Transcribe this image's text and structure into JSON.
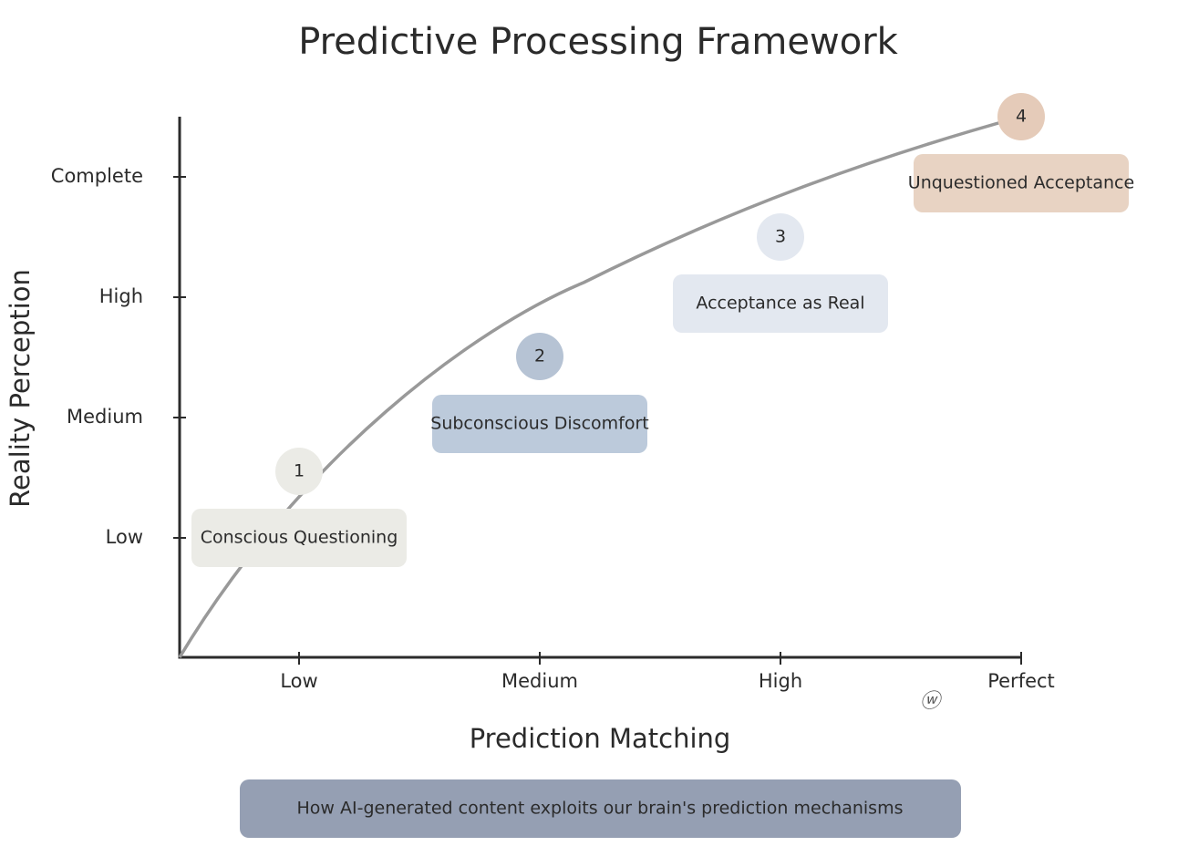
{
  "title": "Predictive Processing Framework",
  "x_axis": {
    "title": "Prediction Matching",
    "labels": [
      "Low",
      "Medium",
      "High",
      "Perfect"
    ]
  },
  "y_axis": {
    "title": "Reality Perception",
    "labels": [
      "Low",
      "Medium",
      "High",
      "Complete"
    ]
  },
  "stages": [
    {
      "number": "1",
      "label": "Conscious Questioning"
    },
    {
      "number": "2",
      "label": "Subconscious Discomfort"
    },
    {
      "number": "3",
      "label": "Acceptance as Real"
    },
    {
      "number": "4",
      "label": "Unquestioned Acceptance"
    }
  ],
  "caption": "How AI-generated content exploits our brain's prediction mechanisms"
}
